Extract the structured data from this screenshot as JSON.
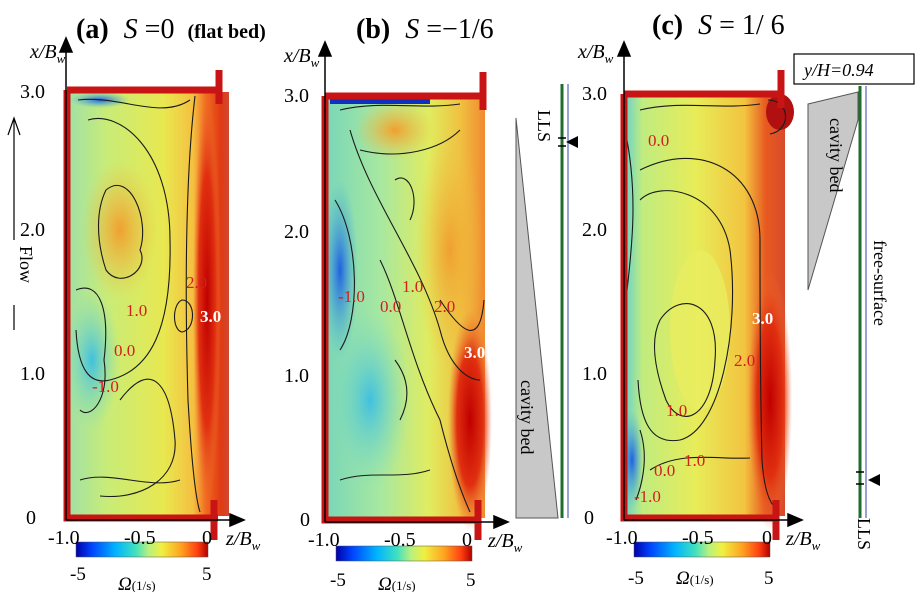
{
  "chart_data": [
    {
      "type": "heatmap",
      "panel": "(a)",
      "title_math": "S",
      "title_eq": "=0",
      "title_note": "(flat bed)",
      "xlabel": "z/B",
      "xlabel_sub": "w",
      "ylabel": "x/B",
      "ylabel_sub": "w",
      "xlim": [
        -1.0,
        0.0
      ],
      "ylim": [
        0.0,
        3.0
      ],
      "x_ticks": [
        "-1.0",
        "-0.5",
        "0"
      ],
      "y_ticks": [
        "0",
        "1.0",
        "2.0",
        "3.0"
      ],
      "contour_labels": [
        "2.0",
        "1.0",
        "3.0",
        "0.0",
        "-1.0"
      ],
      "side_annotations": [
        "Flow"
      ],
      "colorbar": {
        "min": -5,
        "max": 5,
        "min_label": "-5",
        "max_label": "5",
        "label": "Ω",
        "label_sub": "(1/s)"
      }
    },
    {
      "type": "heatmap",
      "panel": "(b)",
      "title_math": "S",
      "title_eq": "=−1/6",
      "title_note": "",
      "xlabel": "z/B",
      "xlabel_sub": "w",
      "ylabel": "x/B",
      "ylabel_sub": "w",
      "xlim": [
        -1.0,
        0.0
      ],
      "ylim": [
        0.0,
        3.0
      ],
      "x_ticks": [
        "-1.0",
        "-0.5",
        "0"
      ],
      "y_ticks": [
        "0",
        "1.0",
        "2.0",
        "3.0"
      ],
      "contour_labels": [
        "1.0",
        "-1.0",
        "0.0",
        "2.0",
        "3.0"
      ],
      "side_annotations": [
        "LLS",
        "cavity bed"
      ],
      "colorbar": {
        "min": -5,
        "max": 5,
        "min_label": "-5",
        "max_label": "5",
        "label": "Ω",
        "label_sub": "(1/s)"
      }
    },
    {
      "type": "heatmap",
      "panel": "(c)",
      "title_math": "S",
      "title_eq": " = 1/ 6",
      "title_note": "",
      "xlabel": "z/B",
      "xlabel_sub": "w",
      "ylabel": "x/B",
      "ylabel_sub": "w",
      "xlim": [
        -1.0,
        0.0
      ],
      "ylim": [
        0.0,
        3.0
      ],
      "x_ticks": [
        "-1.0",
        "-0.5",
        "0"
      ],
      "y_ticks": [
        "0",
        "1.0",
        "2.0",
        "3.0"
      ],
      "contour_labels": [
        "0.0",
        "3.0",
        "2.0",
        "1.0",
        "1.0",
        "0.0",
        "-1.0"
      ],
      "side_annotations": [
        "y/H=0.94",
        "cavity bed",
        "free-surface",
        "LLS"
      ],
      "colorbar": {
        "min": -5,
        "max": 5,
        "min_label": "-5",
        "max_label": "5",
        "label": "Ω",
        "label_sub": "(1/s)"
      }
    }
  ],
  "colors": {
    "frame": "#c81414",
    "cavity_bed": "#c8c8c8",
    "lls_line": "#1e6e2e",
    "free_surface_line": "#3344aa",
    "contour": "#1a1a1a",
    "label_red": "#d21f1f"
  }
}
